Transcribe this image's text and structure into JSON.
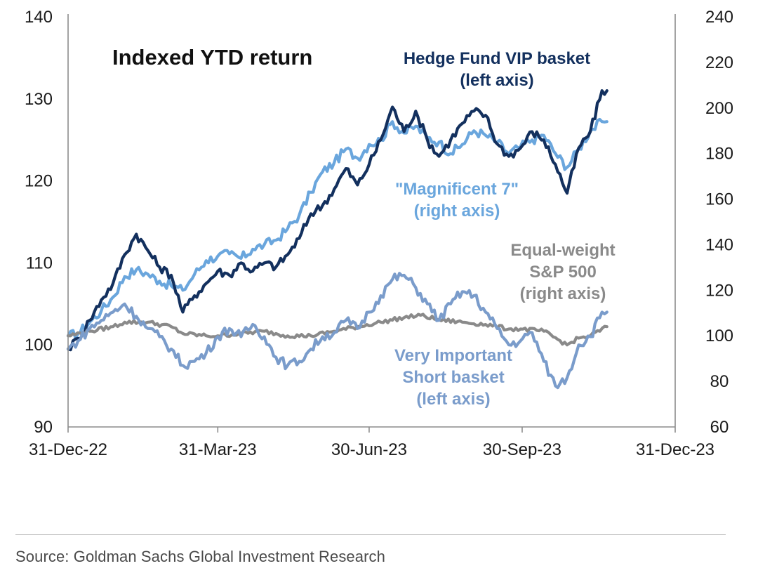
{
  "chart_data": {
    "type": "line",
    "title": "Indexed YTD return",
    "x_ticks": [
      "31-Dec-22",
      "31-Mar-23",
      "30-Jun-23",
      "30-Sep-23",
      "31-Dec-23"
    ],
    "x_range": [
      "2022-12-31",
      "2023-12-31"
    ],
    "left_axis": {
      "ylim": [
        90,
        140
      ],
      "ticks": [
        90,
        100,
        110,
        120,
        130,
        140
      ]
    },
    "right_axis": {
      "ylim": [
        60,
        240
      ],
      "ticks": [
        60,
        80,
        100,
        120,
        140,
        160,
        180,
        200,
        220,
        240
      ]
    },
    "grid": false,
    "series": [
      {
        "name": "\"Magnificent 7\"",
        "label_lines": [
          "\"Magnificent 7\"",
          "(right axis)"
        ],
        "axis": "right",
        "color": "#6aa6dd",
        "points": [
          [
            "2022-12-31",
            100
          ],
          [
            "2023-01-06",
            101
          ],
          [
            "2023-01-13",
            106
          ],
          [
            "2023-01-20",
            111
          ],
          [
            "2023-01-27",
            117
          ],
          [
            "2023-02-03",
            126
          ],
          [
            "2023-02-10",
            129
          ],
          [
            "2023-02-17",
            127
          ],
          [
            "2023-02-24",
            124
          ],
          [
            "2023-03-03",
            122
          ],
          [
            "2023-03-10",
            120
          ],
          [
            "2023-03-17",
            127
          ],
          [
            "2023-03-24",
            133
          ],
          [
            "2023-03-31",
            135
          ],
          [
            "2023-04-07",
            136
          ],
          [
            "2023-04-14",
            134
          ],
          [
            "2023-04-21",
            138
          ],
          [
            "2023-04-28",
            140
          ],
          [
            "2023-05-05",
            142
          ],
          [
            "2023-05-12",
            147
          ],
          [
            "2023-05-19",
            153
          ],
          [
            "2023-05-26",
            163
          ],
          [
            "2023-06-02",
            172
          ],
          [
            "2023-06-09",
            176
          ],
          [
            "2023-06-16",
            182
          ],
          [
            "2023-06-23",
            178
          ],
          [
            "2023-06-30",
            184
          ],
          [
            "2023-07-07",
            186
          ],
          [
            "2023-07-14",
            194
          ],
          [
            "2023-07-21",
            189
          ],
          [
            "2023-07-28",
            192
          ],
          [
            "2023-08-04",
            187
          ],
          [
            "2023-08-11",
            185
          ],
          [
            "2023-08-18",
            180
          ],
          [
            "2023-08-25",
            184
          ],
          [
            "2023-09-01",
            190
          ],
          [
            "2023-09-08",
            188
          ],
          [
            "2023-09-15",
            185
          ],
          [
            "2023-09-22",
            180
          ],
          [
            "2023-09-29",
            183
          ],
          [
            "2023-10-06",
            186
          ],
          [
            "2023-10-13",
            188
          ],
          [
            "2023-10-20",
            180
          ],
          [
            "2023-10-27",
            174
          ],
          [
            "2023-11-03",
            182
          ],
          [
            "2023-11-10",
            190
          ],
          [
            "2023-11-17",
            194
          ],
          [
            "2023-11-20",
            194
          ]
        ]
      },
      {
        "name": "Hedge Fund VIP basket",
        "label_lines": [
          "Hedge Fund VIP basket",
          "(left axis)"
        ],
        "axis": "left",
        "color": "#13305e",
        "points": [
          [
            "2022-12-31",
            99.5
          ],
          [
            "2023-01-06",
            100.8
          ],
          [
            "2023-01-13",
            103
          ],
          [
            "2023-01-20",
            105.5
          ],
          [
            "2023-01-27",
            107.5
          ],
          [
            "2023-02-03",
            111
          ],
          [
            "2023-02-10",
            113.5
          ],
          [
            "2023-02-17",
            111.5
          ],
          [
            "2023-02-24",
            109.5
          ],
          [
            "2023-03-03",
            108.5
          ],
          [
            "2023-03-10",
            104
          ],
          [
            "2023-03-17",
            106
          ],
          [
            "2023-03-24",
            107.5
          ],
          [
            "2023-03-31",
            109
          ],
          [
            "2023-04-07",
            108.5
          ],
          [
            "2023-04-14",
            110
          ],
          [
            "2023-04-21",
            109
          ],
          [
            "2023-04-28",
            110
          ],
          [
            "2023-05-05",
            109.5
          ],
          [
            "2023-05-12",
            111
          ],
          [
            "2023-05-19",
            113
          ],
          [
            "2023-05-26",
            116
          ],
          [
            "2023-06-02",
            117
          ],
          [
            "2023-06-09",
            119
          ],
          [
            "2023-06-16",
            121.5
          ],
          [
            "2023-06-23",
            119.5
          ],
          [
            "2023-06-30",
            122
          ],
          [
            "2023-07-07",
            125
          ],
          [
            "2023-07-14",
            129
          ],
          [
            "2023-07-21",
            126
          ],
          [
            "2023-07-28",
            128.5
          ],
          [
            "2023-08-04",
            125
          ],
          [
            "2023-08-11",
            123
          ],
          [
            "2023-08-18",
            125
          ],
          [
            "2023-08-25",
            127
          ],
          [
            "2023-09-01",
            128.5
          ],
          [
            "2023-09-08",
            128
          ],
          [
            "2023-09-15",
            124.5
          ],
          [
            "2023-09-22",
            123
          ],
          [
            "2023-09-29",
            124
          ],
          [
            "2023-10-06",
            126
          ],
          [
            "2023-10-13",
            125
          ],
          [
            "2023-10-20",
            122
          ],
          [
            "2023-10-27",
            118.5
          ],
          [
            "2023-11-03",
            124
          ],
          [
            "2023-11-10",
            126
          ],
          [
            "2023-11-17",
            131
          ],
          [
            "2023-11-20",
            131
          ]
        ]
      },
      {
        "name": "Equal-weight S&P 500",
        "label_lines": [
          "Equal-weight",
          "S&P 500",
          "(right axis)"
        ],
        "axis": "right",
        "color": "#8a8a8a",
        "points": [
          [
            "2022-12-31",
            100
          ],
          [
            "2023-01-13",
            102
          ],
          [
            "2023-01-27",
            104
          ],
          [
            "2023-02-03",
            106
          ],
          [
            "2023-02-17",
            106
          ],
          [
            "2023-03-03",
            104
          ],
          [
            "2023-03-10",
            101
          ],
          [
            "2023-03-24",
            100
          ],
          [
            "2023-03-31",
            100
          ],
          [
            "2023-04-14",
            101
          ],
          [
            "2023-04-28",
            102
          ],
          [
            "2023-05-12",
            100
          ],
          [
            "2023-05-26",
            100
          ],
          [
            "2023-06-09",
            102
          ],
          [
            "2023-06-23",
            104
          ],
          [
            "2023-07-07",
            106
          ],
          [
            "2023-07-21",
            108
          ],
          [
            "2023-07-31",
            109
          ],
          [
            "2023-08-11",
            107
          ],
          [
            "2023-08-25",
            106
          ],
          [
            "2023-09-08",
            105
          ],
          [
            "2023-09-22",
            103
          ],
          [
            "2023-09-29",
            103
          ],
          [
            "2023-10-13",
            102
          ],
          [
            "2023-10-27",
            96
          ],
          [
            "2023-11-03",
            99
          ],
          [
            "2023-11-10",
            100
          ],
          [
            "2023-11-20",
            104
          ]
        ]
      },
      {
        "name": "Very Important Short basket",
        "label_lines": [
          "Very Important",
          "Short basket",
          "(left axis)"
        ],
        "axis": "left",
        "color": "#7a9ccb",
        "points": [
          [
            "2022-12-31",
            99.5
          ],
          [
            "2023-01-06",
            100.5
          ],
          [
            "2023-01-13",
            102
          ],
          [
            "2023-01-20",
            103
          ],
          [
            "2023-01-27",
            104
          ],
          [
            "2023-02-03",
            105
          ],
          [
            "2023-02-10",
            103.5
          ],
          [
            "2023-02-17",
            102
          ],
          [
            "2023-02-24",
            101
          ],
          [
            "2023-03-03",
            99.5
          ],
          [
            "2023-03-10",
            97.5
          ],
          [
            "2023-03-17",
            98
          ],
          [
            "2023-03-24",
            99
          ],
          [
            "2023-03-31",
            101
          ],
          [
            "2023-04-07",
            102
          ],
          [
            "2023-04-14",
            101
          ],
          [
            "2023-04-21",
            102.5
          ],
          [
            "2023-04-28",
            101
          ],
          [
            "2023-05-05",
            98.5
          ],
          [
            "2023-05-12",
            97.5
          ],
          [
            "2023-05-19",
            98
          ],
          [
            "2023-05-26",
            99.5
          ],
          [
            "2023-06-02",
            101
          ],
          [
            "2023-06-09",
            101.5
          ],
          [
            "2023-06-16",
            103
          ],
          [
            "2023-06-23",
            102
          ],
          [
            "2023-06-30",
            104
          ],
          [
            "2023-07-07",
            106
          ],
          [
            "2023-07-14",
            108
          ],
          [
            "2023-07-21",
            108.5
          ],
          [
            "2023-07-28",
            107
          ],
          [
            "2023-08-04",
            105
          ],
          [
            "2023-08-11",
            103
          ],
          [
            "2023-08-18",
            105
          ],
          [
            "2023-08-25",
            106.5
          ],
          [
            "2023-09-01",
            106
          ],
          [
            "2023-09-08",
            104
          ],
          [
            "2023-09-15",
            102
          ],
          [
            "2023-09-22",
            100
          ],
          [
            "2023-09-29",
            100.5
          ],
          [
            "2023-10-06",
            101.5
          ],
          [
            "2023-10-13",
            98
          ],
          [
            "2023-10-20",
            95
          ],
          [
            "2023-10-27",
            96
          ],
          [
            "2023-11-03",
            100
          ],
          [
            "2023-11-10",
            101
          ],
          [
            "2023-11-17",
            104
          ],
          [
            "2023-11-20",
            104
          ]
        ]
      }
    ]
  },
  "source": "Source: Goldman Sachs Global Investment Research"
}
